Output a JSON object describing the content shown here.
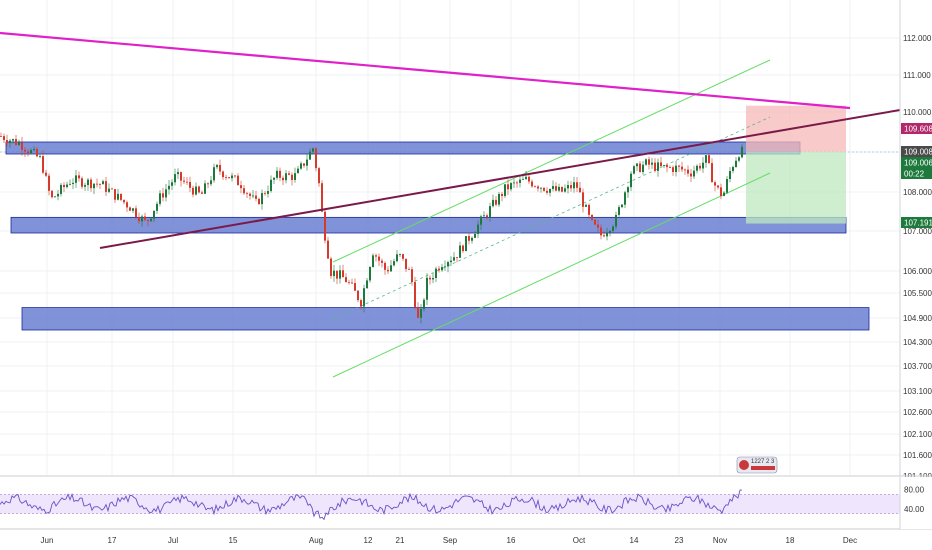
{
  "chart_data": [
    {
      "type": "candlestick",
      "panel": "price",
      "x_labels": [
        "Jun",
        "17",
        "Jul",
        "15",
        "Aug",
        "12",
        "21",
        "Sep",
        "16",
        "Oct",
        "14",
        "23",
        "Nov",
        "18",
        "Dec"
      ],
      "y_ticks": [
        "112.000",
        "111.000",
        "110.000",
        "109.000",
        "108.000",
        "107.000",
        "106.000",
        "105.500",
        "104.900",
        "104.300",
        "103.700",
        "103.100",
        "102.600",
        "102.100",
        "101.600",
        "101.100"
      ],
      "ylim": [
        101.0,
        112.6
      ],
      "price_tags": [
        {
          "value": "109.608",
          "color": "#b2286a"
        },
        {
          "value": "109.008",
          "color": "#4a4a4a"
        },
        {
          "value": "109.006",
          "color": "#1e7a3c"
        },
        {
          "value": "00:22",
          "color": "#1e7a3c"
        },
        {
          "value": "107.191",
          "color": "#1e7a3c"
        }
      ],
      "support_resistance_zones": [
        {
          "low": 108.95,
          "high": 109.25
        },
        {
          "low": 106.95,
          "high": 107.35
        },
        {
          "low": 104.6,
          "high": 105.15
        }
      ],
      "trendlines": [
        {
          "name": "",
          "color": "#e020c8"
        },
        {
          "name": "",
          "color": "#7a1a4a"
        },
        {
          "name": "",
          "color": "#66dd66"
        }
      ],
      "position_tool": {
        "entry": 109.006,
        "stop": 109.608,
        "target": 107.191
      },
      "colors": {
        "up": "#1e7a3c",
        "down": "#d63a2a",
        "zone": "#6a7fd1",
        "zone_border": "#1b2a9e"
      }
    },
    {
      "type": "line",
      "panel": "oscillator",
      "y_ticks": [
        "80.00",
        "40.00"
      ],
      "bands": [
        70,
        30
      ],
      "color": "#6a4fc8"
    }
  ],
  "watermark": {
    "line1": "1227 2 3"
  }
}
